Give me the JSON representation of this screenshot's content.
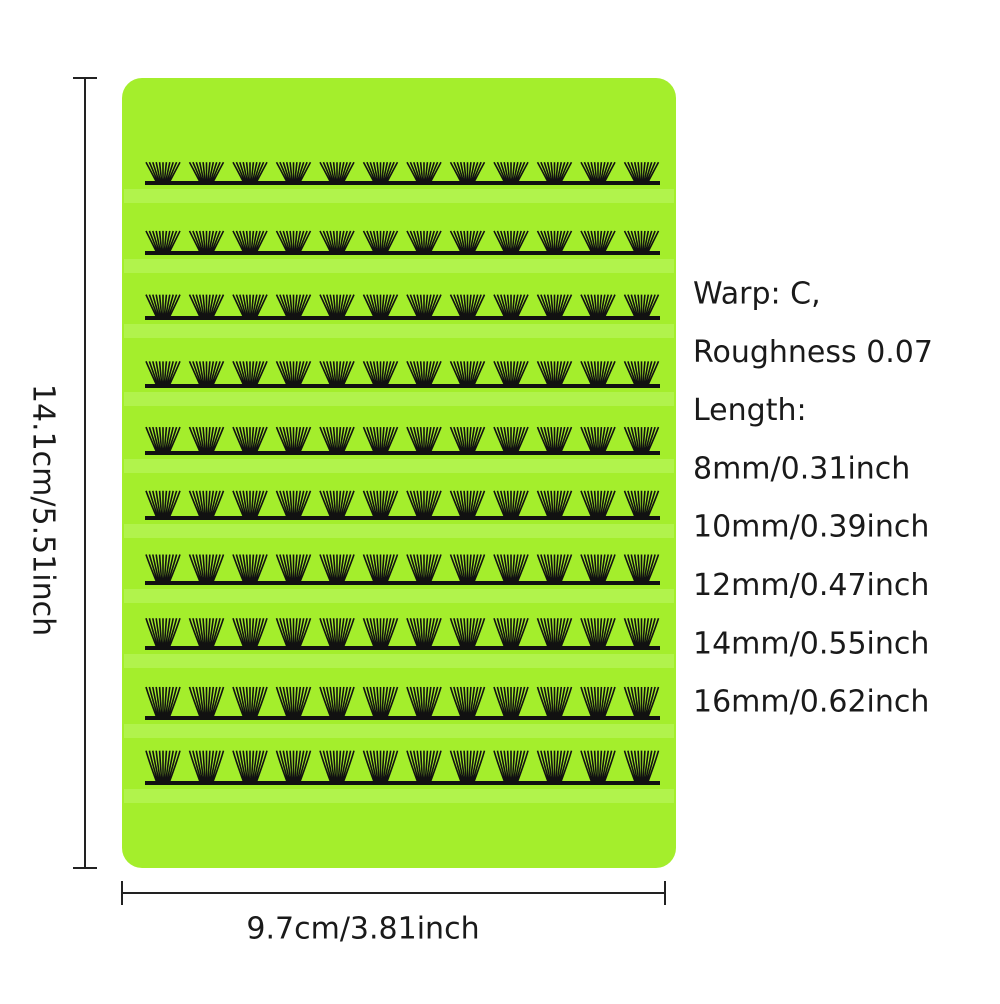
{
  "height_label": "14.1cm/5.51inch",
  "width_label": "9.7cm/3.81inch",
  "specs": [
    "Warp: C,",
    "Roughness 0.07",
    "Length:",
    "8mm/0.31inch",
    "10mm/0.39inch",
    "12mm/0.47inch",
    "14mm/0.55inch",
    "16mm/0.62inch"
  ]
}
